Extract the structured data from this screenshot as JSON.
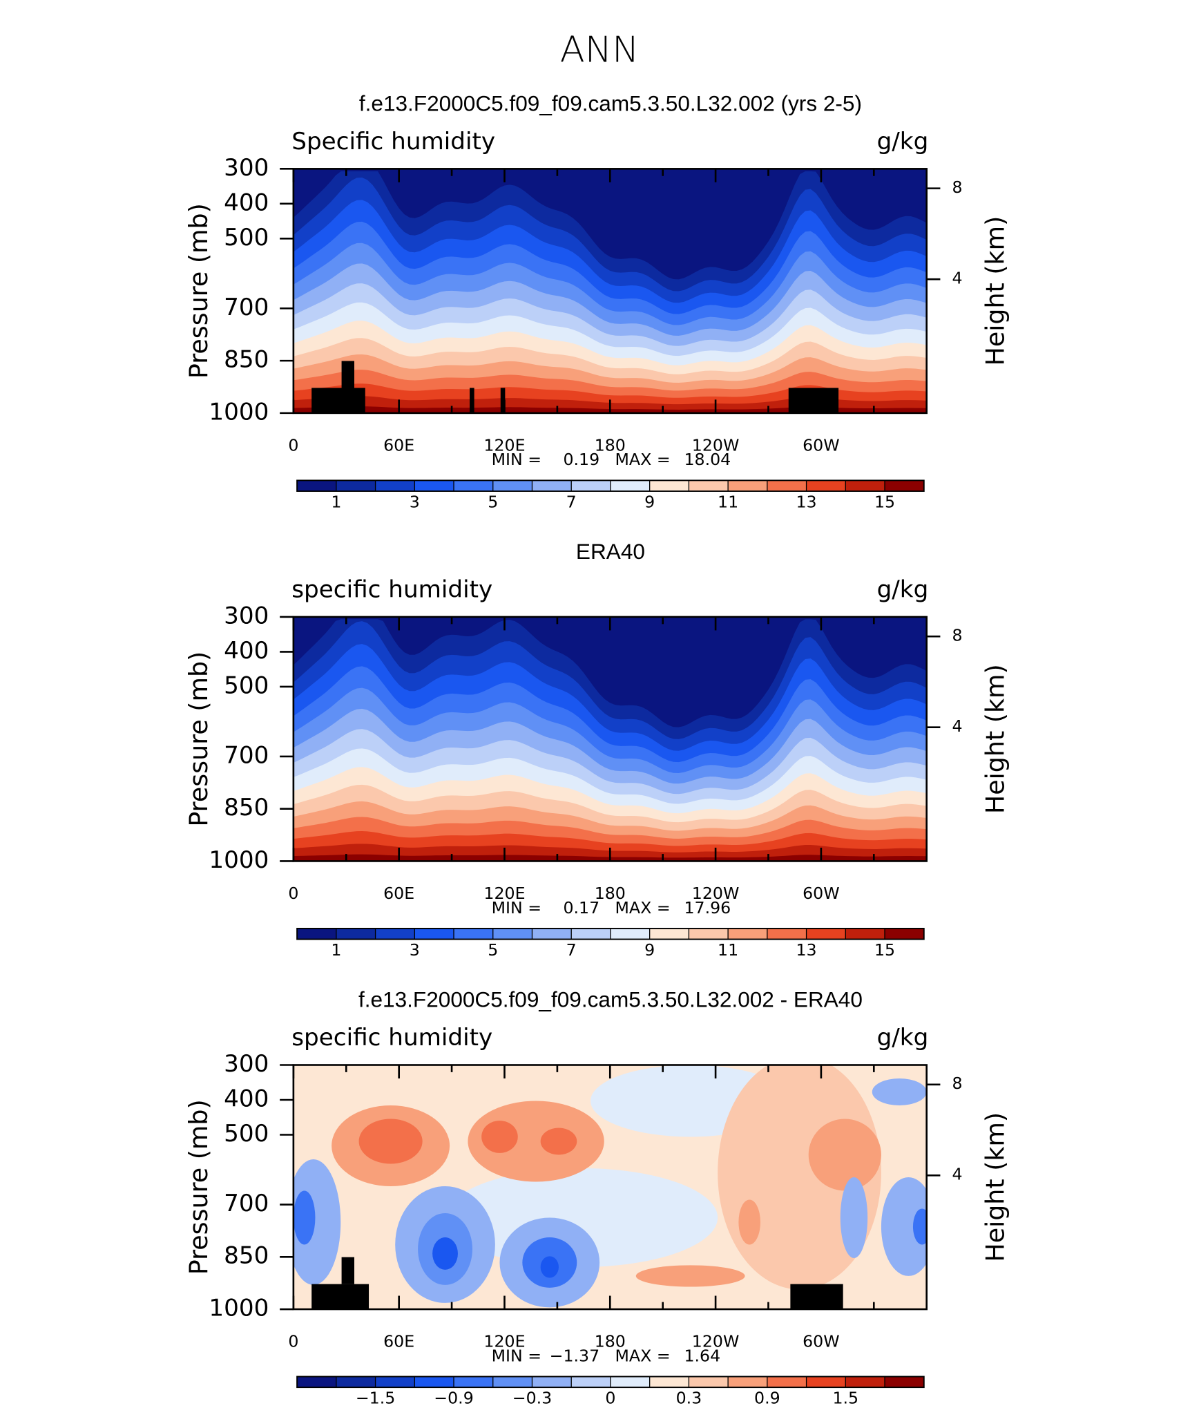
{
  "title": "ANN",
  "chart_data": [
    {
      "type": "contour",
      "title": "f.e13.F2000C5.f09_f09.cam5.3.50.L32.002 (yrs 2-5)",
      "left_label": "Specific humidity",
      "right_label": "g/kg",
      "y_label": "Pressure (mb)",
      "y2_label": "Height (km)",
      "xlim": [
        0,
        360
      ],
      "ylim": [
        1000,
        300
      ],
      "xticks": [
        0,
        {
          "value": 60,
          "label": "60E"
        },
        {
          "value": 120,
          "label": "120E"
        },
        180,
        {
          "value": 240,
          "label": "120W"
        },
        {
          "value": 300,
          "label": "60W"
        }
      ],
      "xminor": [
        30,
        90,
        150,
        210,
        270,
        330
      ],
      "yticks": [
        300,
        400,
        500,
        700,
        850,
        1000
      ],
      "y2ticks": [
        8,
        4
      ],
      "y2_scale": "standard-atmosphere",
      "stats": {
        "names": [
          "MIN =",
          "MAX ="
        ],
        "values": [
          0.19,
          18.04
        ]
      },
      "colorbar": {
        "colors": [
          "#0a1580",
          "#0d2a9f",
          "#1240c8",
          "#1a57f0",
          "#3a73f5",
          "#6090f5",
          "#90b0f5",
          "#bcd0f8",
          "#e0ecfb",
          "#fde7d4",
          "#fbc8ac",
          "#f8a07a",
          "#f3704a",
          "#e74220",
          "#c0200c",
          "#8b0000"
        ],
        "levels": [
          1,
          2,
          3,
          4,
          5,
          6,
          7,
          8,
          9,
          10,
          11,
          12,
          13,
          14,
          15
        ],
        "ticks": [
          1,
          3,
          5,
          7,
          9,
          11,
          13,
          15
        ]
      }
    },
    {
      "type": "contour",
      "title": "ERA40",
      "left_label": "specific humidity",
      "right_label": "g/kg",
      "y_label": "Pressure (mb)",
      "y2_label": "Height (km)",
      "xlim": [
        0,
        360
      ],
      "ylim": [
        1000,
        300
      ],
      "xticks": [
        0,
        {
          "value": 60,
          "label": "60E"
        },
        {
          "value": 120,
          "label": "120E"
        },
        180,
        {
          "value": 240,
          "label": "120W"
        },
        {
          "value": 300,
          "label": "60W"
        }
      ],
      "xminor": [
        30,
        90,
        150,
        210,
        270,
        330
      ],
      "yticks": [
        300,
        400,
        500,
        700,
        850,
        1000
      ],
      "y2ticks": [
        8,
        4
      ],
      "y2_scale": "standard-atmosphere",
      "stats": {
        "names": [
          "MIN =",
          "MAX ="
        ],
        "values": [
          0.17,
          17.96
        ]
      },
      "colorbar": {
        "colors": [
          "#0a1580",
          "#0d2a9f",
          "#1240c8",
          "#1a57f0",
          "#3a73f5",
          "#6090f5",
          "#90b0f5",
          "#bcd0f8",
          "#e0ecfb",
          "#fde7d4",
          "#fbc8ac",
          "#f8a07a",
          "#f3704a",
          "#e74220",
          "#c0200c",
          "#8b0000"
        ],
        "levels": [
          1,
          2,
          3,
          4,
          5,
          6,
          7,
          8,
          9,
          10,
          11,
          12,
          13,
          14,
          15
        ],
        "ticks": [
          1,
          3,
          5,
          7,
          9,
          11,
          13,
          15
        ]
      }
    },
    {
      "type": "contour-diff",
      "title": "f.e13.F2000C5.f09_f09.cam5.3.50.L32.002 - ERA40",
      "left_label": "specific humidity",
      "right_label": "g/kg",
      "y_label": "Pressure (mb)",
      "y2_label": "Height (km)",
      "xlim": [
        0,
        360
      ],
      "ylim": [
        1000,
        300
      ],
      "xticks": [
        0,
        {
          "value": 60,
          "label": "60E"
        },
        {
          "value": 120,
          "label": "120E"
        },
        180,
        {
          "value": 240,
          "label": "120W"
        },
        {
          "value": 300,
          "label": "60W"
        }
      ],
      "xminor": [
        30,
        90,
        150,
        210,
        270,
        330
      ],
      "yticks": [
        300,
        400,
        500,
        700,
        850,
        1000
      ],
      "y2ticks": [
        8,
        4
      ],
      "y2_scale": "standard-atmosphere",
      "stats": {
        "names": [
          "MIN =",
          "MAX ="
        ],
        "values": [
          -1.37,
          1.64
        ],
        "value_labels": [
          "−1.37",
          "1.64"
        ]
      },
      "colorbar": {
        "colors": [
          "#0a1580",
          "#0d2a9f",
          "#1240c8",
          "#1a57f0",
          "#3a73f5",
          "#6090f5",
          "#90b0f5",
          "#bcd0f8",
          "#e0ecfb",
          "#fde7d4",
          "#fbc8ac",
          "#f8a07a",
          "#f3704a",
          "#e74220",
          "#c0200c",
          "#8b0000"
        ],
        "levels": [
          -1.8,
          -1.5,
          -1.2,
          -0.9,
          -0.6,
          -0.3,
          -0.1,
          0,
          0.1,
          0.3,
          0.6,
          0.9,
          1.2,
          1.5,
          1.8
        ],
        "ticks": [
          {
            "value": -1.5,
            "label": "−1.5"
          },
          {
            "value": -0.9,
            "label": "−0.9"
          },
          {
            "value": -0.3,
            "label": "−0.3"
          },
          0,
          0.3,
          0.9,
          1.5
        ]
      }
    }
  ]
}
